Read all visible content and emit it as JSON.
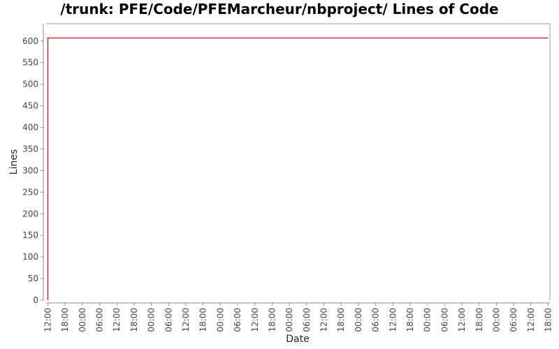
{
  "chart_data": {
    "type": "line",
    "title": "/trunk: PFE/Code/PFEMarcheur/nbproject/ Lines of Code",
    "xlabel": "Date",
    "ylabel": "Lines",
    "ylim": [
      0,
      640
    ],
    "y_ticks": [
      0,
      50,
      100,
      150,
      200,
      250,
      300,
      350,
      400,
      450,
      500,
      550,
      600
    ],
    "x_tick_labels": [
      "12:00",
      "18:00",
      "00:00",
      "06:00",
      "12:00",
      "18:00",
      "00:00",
      "06:00",
      "12:00",
      "18:00",
      "00:00",
      "06:00",
      "12:00",
      "18:00",
      "00:00",
      "06:00",
      "12:00",
      "18:00",
      "00:00",
      "06:00",
      "12:00",
      "18:00",
      "00:00",
      "06:00",
      "12:00",
      "18:00",
      "00:00",
      "06:00",
      "12:00",
      "18:00"
    ],
    "x_hours_range": [
      -0.6,
      174.6
    ],
    "series": [
      {
        "points": [
          [
            0,
            0
          ],
          [
            0,
            607
          ],
          [
            174,
            607
          ]
        ]
      }
    ],
    "grid": false,
    "legend": "none"
  },
  "colors": {
    "series": "#cc0000",
    "axis": "#888888",
    "plot_border": "#999999"
  }
}
